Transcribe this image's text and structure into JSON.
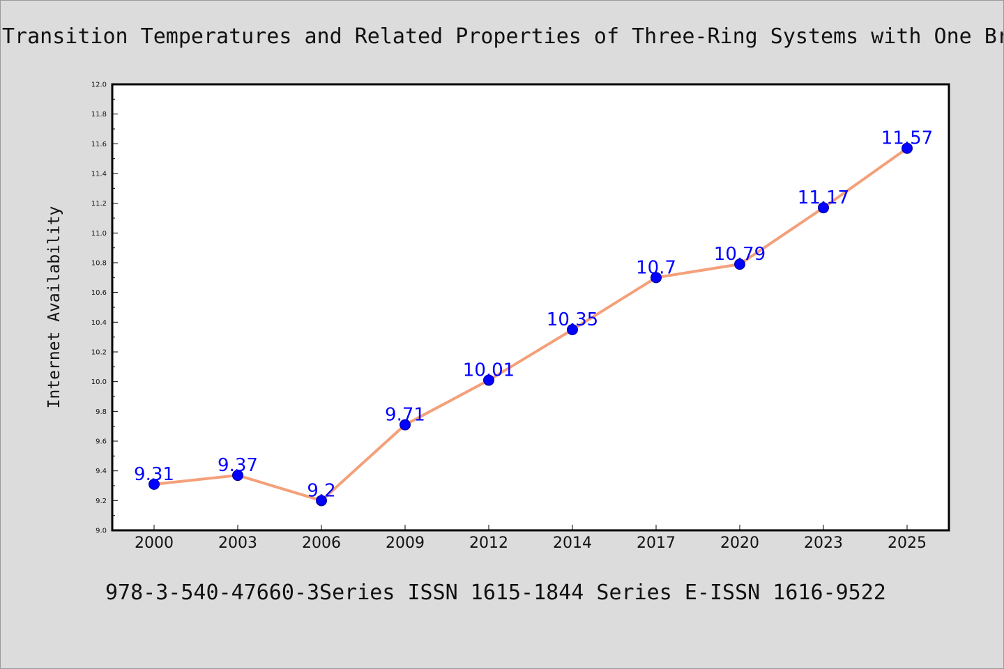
{
  "chart_data": {
    "type": "line",
    "title": "Transition Temperatures and Related Properties of Three-Ring Systems with One Br",
    "caption": "978-3-540-47660-3Series ISSN 1615-1844 Series E-ISSN 1616-9522",
    "xlabel": "",
    "ylabel": "Internet Availability",
    "categories": [
      "2000",
      "2003",
      "2006",
      "2009",
      "2012",
      "2014",
      "2017",
      "2020",
      "2023",
      "2025"
    ],
    "series": [
      {
        "values": [
          9.31,
          9.37,
          9.2,
          9.71,
          10.01,
          10.35,
          10.7,
          10.79,
          11.17,
          11.57
        ],
        "labels": [
          "9.31",
          "9.37",
          "9.2",
          "9.71",
          "10.01",
          "10.35",
          "10.7",
          "10.79",
          "11.17",
          "11.57"
        ]
      }
    ],
    "ylim": [
      9.0,
      12.0
    ],
    "yticks": [
      "9.0",
      "9.2",
      "9.4",
      "9.6",
      "9.8",
      "10.0",
      "10.2",
      "10.4",
      "10.6",
      "10.8",
      "11.0",
      "11.2",
      "11.4",
      "11.6",
      "11.8",
      "12.0"
    ],
    "grid": false,
    "colors": {
      "line": "#f4a07a",
      "marker": "#0000ff",
      "data_label": "#0000ff",
      "background": "#dcdcdc",
      "plot_background": "#ffffff"
    }
  }
}
